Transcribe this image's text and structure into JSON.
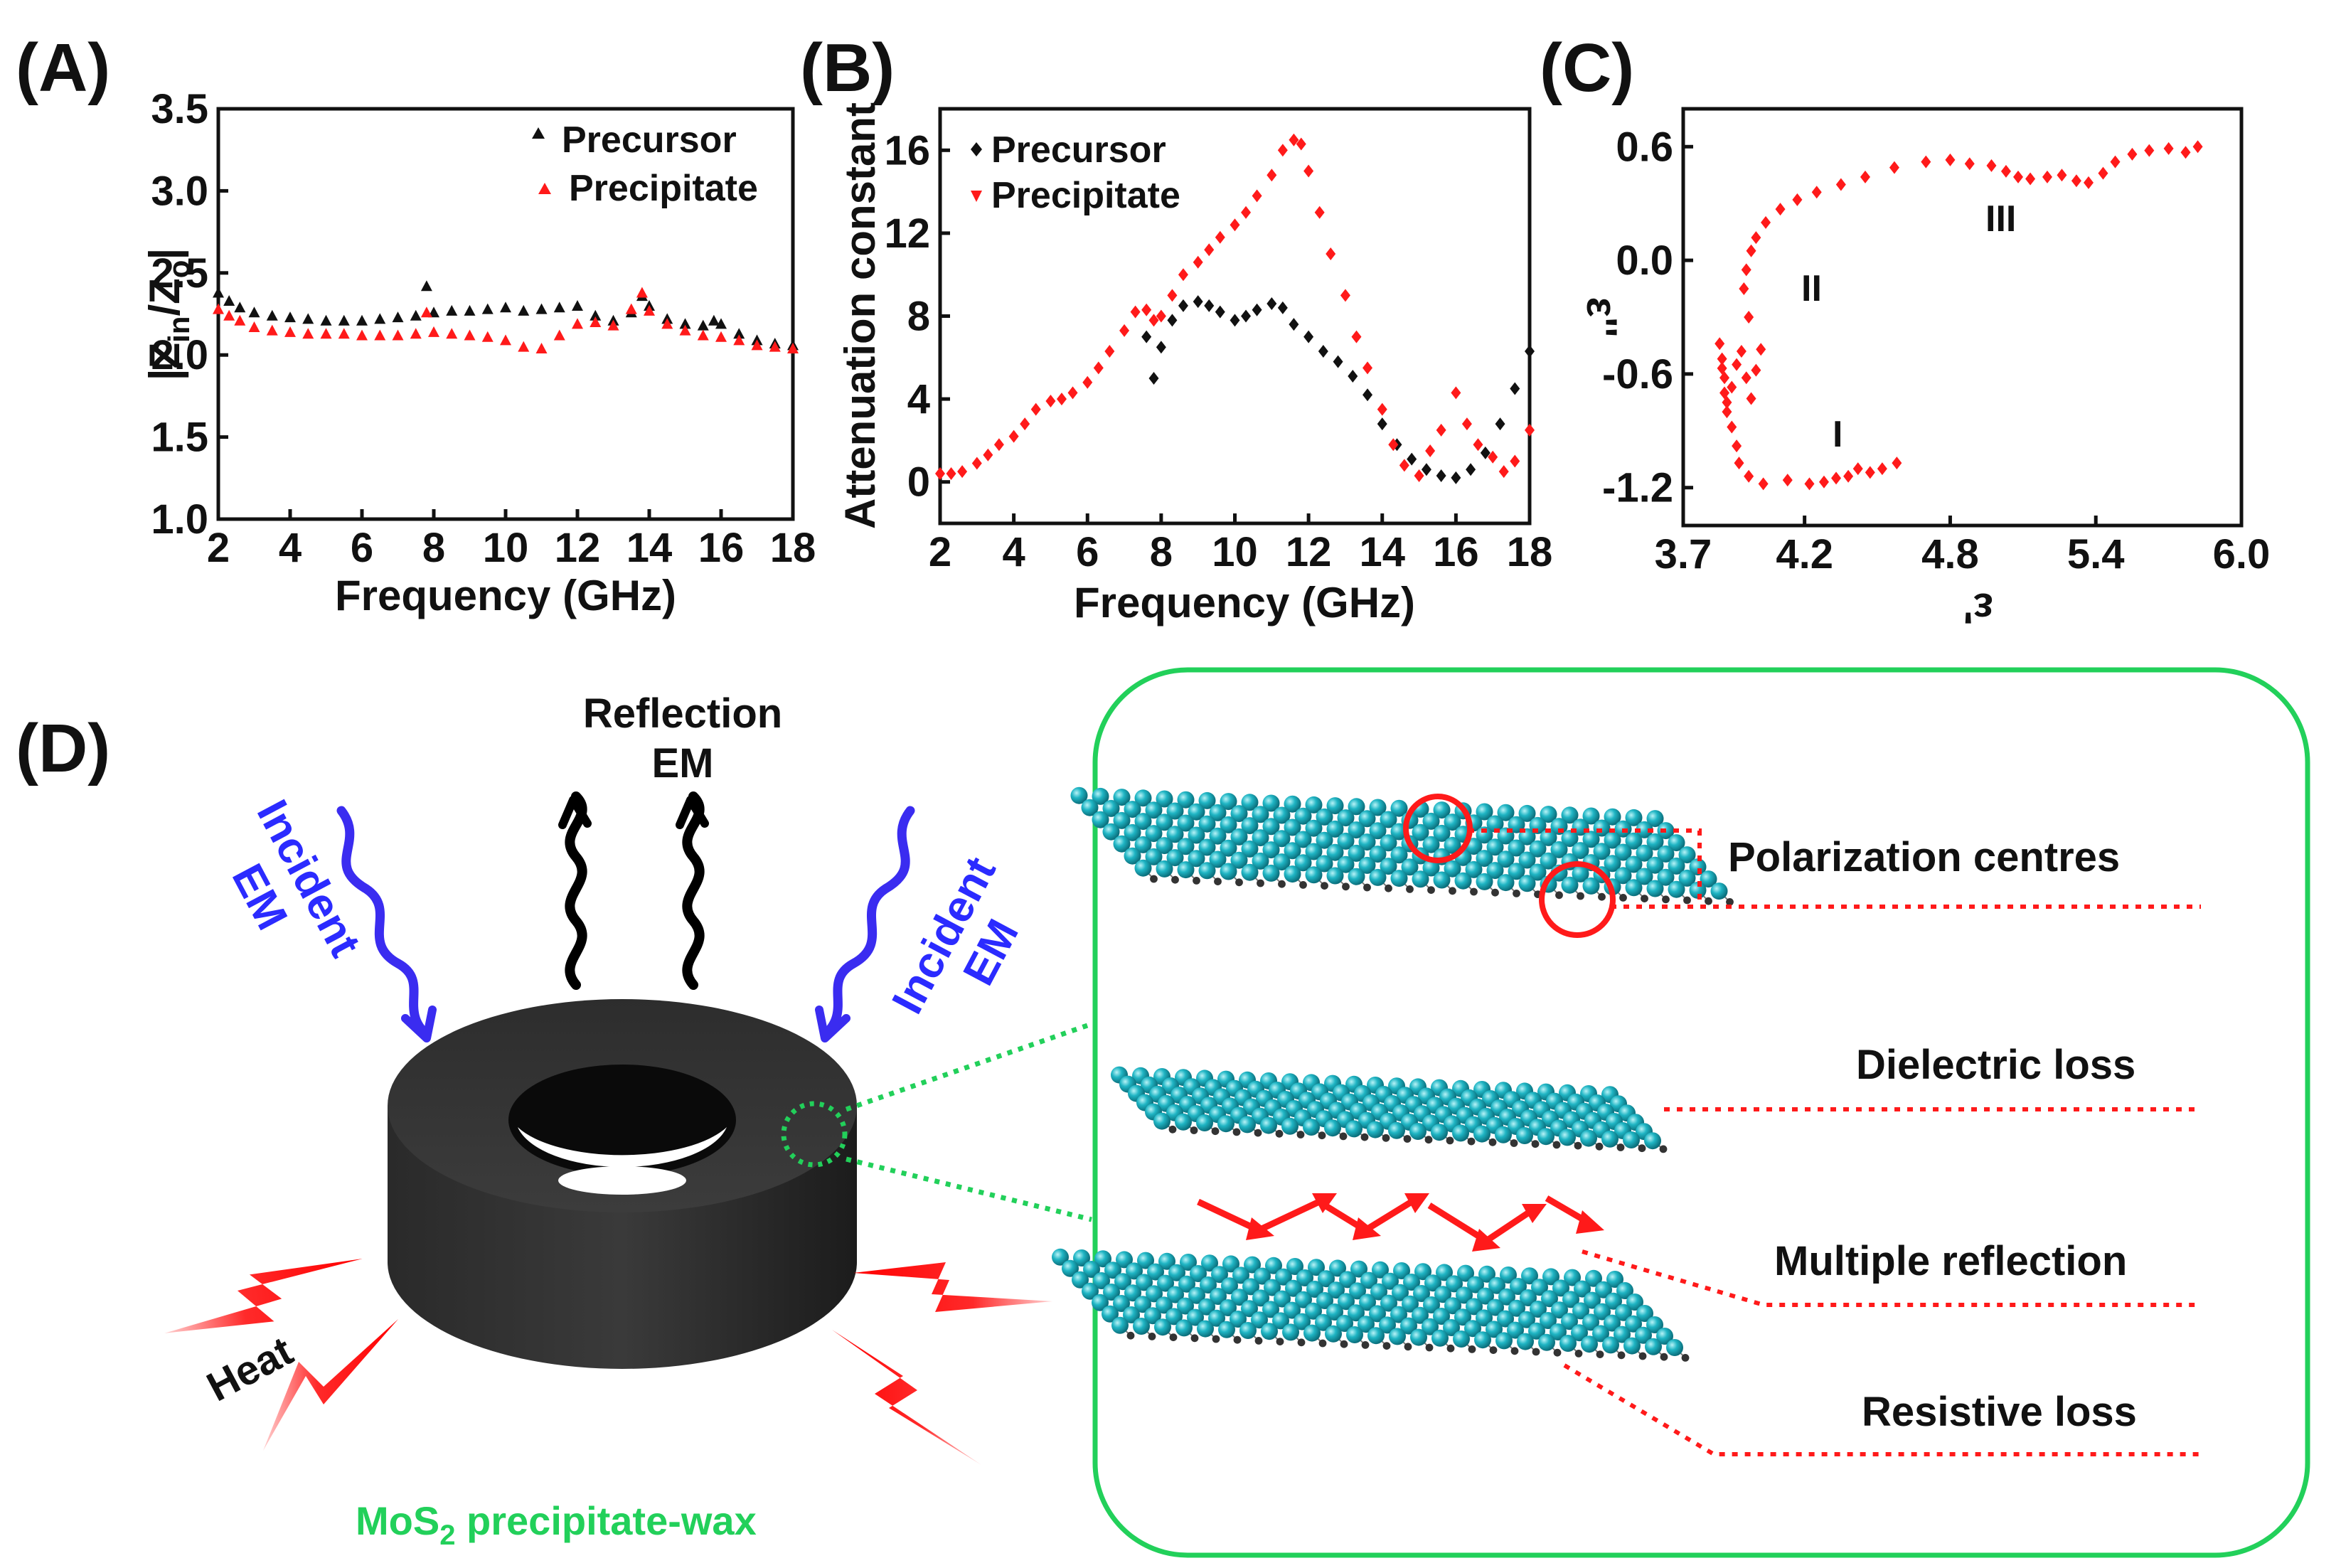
{
  "panels": {
    "a": {
      "label": "(A)"
    },
    "b": {
      "label": "(B)"
    },
    "c": {
      "label": "(C)"
    },
    "d": {
      "label": "(D)"
    }
  },
  "colors": {
    "black_series": "#111111",
    "red_series": "#ff1a1a",
    "sphere": "#1ab0c0",
    "green": "#22d05a",
    "blue": "#2b2bff"
  },
  "chart_data": [
    {
      "id": "A",
      "type": "scatter",
      "title": "",
      "xlabel": "Frequency (GHz)",
      "ylabel_main": "|Z",
      "ylabel_sub1": "in",
      "ylabel_mid": "/Z",
      "ylabel_sub2": "o",
      "ylabel_end": "|",
      "xlim": [
        2,
        18
      ],
      "ylim": [
        1.0,
        3.5
      ],
      "xticks": [
        "2",
        "4",
        "6",
        "8",
        "10",
        "12",
        "14",
        "16",
        "18"
      ],
      "yticks": [
        "1.0",
        "1.5",
        "2.0",
        "2.5",
        "3.0",
        "3.5"
      ],
      "legend": [
        "Precursor",
        "Precipitate"
      ],
      "series": [
        {
          "name": "Precursor",
          "marker": "triangle",
          "color": "#111111",
          "x": [
            2.0,
            2.3,
            2.6,
            3.0,
            3.5,
            4.0,
            4.5,
            5.0,
            5.5,
            6.0,
            6.5,
            7.0,
            7.5,
            7.8,
            8.0,
            8.5,
            9.0,
            9.5,
            10.0,
            10.5,
            11.0,
            11.5,
            12.0,
            12.5,
            13.0,
            13.5,
            13.8,
            14.0,
            14.5,
            15.0,
            15.5,
            15.8,
            16.0,
            16.5,
            17.0,
            17.5,
            18.0
          ],
          "y": [
            2.38,
            2.33,
            2.29,
            2.26,
            2.24,
            2.23,
            2.22,
            2.21,
            2.21,
            2.21,
            2.22,
            2.23,
            2.24,
            2.42,
            2.26,
            2.27,
            2.27,
            2.28,
            2.29,
            2.27,
            2.28,
            2.29,
            2.3,
            2.24,
            2.21,
            2.26,
            2.36,
            2.3,
            2.22,
            2.19,
            2.18,
            2.21,
            2.19,
            2.13,
            2.09,
            2.07,
            2.06
          ]
        },
        {
          "name": "Precipitate",
          "marker": "triangle",
          "color": "#ff1a1a",
          "x": [
            2.0,
            2.3,
            2.6,
            3.0,
            3.5,
            4.0,
            4.5,
            5.0,
            5.5,
            6.0,
            6.5,
            7.0,
            7.5,
            7.8,
            8.0,
            8.5,
            9.0,
            9.5,
            10.0,
            10.5,
            11.0,
            11.5,
            12.0,
            12.5,
            13.0,
            13.5,
            13.8,
            14.0,
            14.5,
            15.0,
            15.5,
            16.0,
            16.5,
            17.0,
            17.5,
            18.0
          ],
          "y": [
            2.28,
            2.24,
            2.21,
            2.17,
            2.15,
            2.14,
            2.13,
            2.13,
            2.13,
            2.12,
            2.12,
            2.12,
            2.13,
            2.26,
            2.14,
            2.13,
            2.12,
            2.11,
            2.09,
            2.05,
            2.04,
            2.12,
            2.19,
            2.2,
            2.18,
            2.28,
            2.38,
            2.27,
            2.19,
            2.15,
            2.12,
            2.11,
            2.09,
            2.06,
            2.05,
            2.04
          ]
        }
      ]
    },
    {
      "id": "B",
      "type": "scatter",
      "title": "",
      "xlabel": "Frequency (GHz)",
      "ylabel": "Attenuation constant",
      "xlim": [
        2,
        18
      ],
      "ylim": [
        -2,
        18
      ],
      "xticks": [
        "2",
        "4",
        "6",
        "8",
        "10",
        "12",
        "14",
        "16",
        "18"
      ],
      "yticks": [
        "0",
        "4",
        "8",
        "12",
        "16"
      ],
      "legend": [
        "Precursor",
        "Precipitate"
      ],
      "series": [
        {
          "name": "Precursor",
          "marker": "diamond",
          "color": "#111111",
          "x": [
            7.6,
            7.8,
            8.0,
            8.3,
            8.6,
            9.0,
            9.3,
            9.6,
            10.0,
            10.3,
            10.6,
            11.0,
            11.3,
            11.6,
            12.0,
            12.4,
            12.8,
            13.2,
            13.6,
            14.0,
            14.4,
            14.8,
            15.2,
            15.6,
            16.0,
            16.4,
            16.8,
            17.2,
            17.6,
            18.0
          ],
          "y": [
            7.0,
            5.0,
            6.5,
            7.8,
            8.5,
            8.7,
            8.5,
            8.2,
            7.8,
            8.0,
            8.3,
            8.6,
            8.4,
            7.6,
            7.0,
            6.3,
            5.8,
            5.1,
            4.2,
            2.8,
            1.8,
            1.1,
            0.6,
            0.3,
            0.2,
            0.6,
            1.4,
            2.8,
            4.5,
            6.3
          ]
        },
        {
          "name": "Precipitate",
          "marker": "diamond",
          "color": "#ff1a1a",
          "x": [
            2.0,
            2.3,
            2.6,
            3.0,
            3.3,
            3.6,
            4.0,
            4.3,
            4.6,
            5.0,
            5.3,
            5.6,
            6.0,
            6.3,
            6.6,
            7.0,
            7.3,
            7.6,
            7.8,
            8.0,
            8.3,
            8.6,
            9.0,
            9.3,
            9.6,
            10.0,
            10.3,
            10.6,
            11.0,
            11.3,
            11.6,
            11.8,
            12.0,
            12.3,
            12.6,
            13.0,
            13.3,
            13.6,
            14.0,
            14.3,
            14.6,
            15.0,
            15.3,
            15.6,
            16.0,
            16.3,
            16.6,
            17.0,
            17.3,
            17.6,
            18.0
          ],
          "y": [
            0.4,
            0.4,
            0.5,
            0.9,
            1.3,
            1.8,
            2.2,
            2.8,
            3.5,
            3.9,
            4.0,
            4.3,
            4.8,
            5.5,
            6.3,
            7.3,
            8.2,
            8.3,
            7.8,
            8.0,
            9.0,
            10.0,
            10.6,
            11.2,
            11.8,
            12.4,
            13.0,
            13.8,
            14.8,
            16.0,
            16.5,
            16.3,
            15.0,
            13.0,
            11.0,
            9.0,
            7.0,
            5.5,
            3.5,
            1.8,
            0.8,
            0.3,
            1.5,
            2.5,
            4.3,
            2.8,
            1.8,
            1.2,
            0.5,
            1.0,
            2.5
          ]
        }
      ]
    },
    {
      "id": "C",
      "type": "scatter",
      "title": "",
      "xlabel": "ε'",
      "ylabel": "ε''",
      "xlim": [
        3.7,
        6.0
      ],
      "ylim": [
        -1.4,
        0.8
      ],
      "xticks": [
        "3.7",
        "4.2",
        "4.8",
        "5.4",
        "6.0"
      ],
      "yticks": [
        "-1.2",
        "-0.6",
        "0.0",
        "0.6"
      ],
      "regions": [
        "I",
        "II",
        "III"
      ],
      "series": [
        {
          "name": "Cole-Cole",
          "marker": "diamond",
          "color": "#ff1a1a",
          "x": [
            4.58,
            4.52,
            4.47,
            4.42,
            4.38,
            4.33,
            4.28,
            4.22,
            4.13,
            4.03,
            3.97,
            3.93,
            3.92,
            3.9,
            3.88,
            3.87,
            3.86,
            3.85,
            3.86,
            3.87,
            3.88,
            3.9,
            3.92,
            3.94,
            3.96,
            3.98,
            4.0,
            4.02,
            3.97,
            3.95,
            3.96,
            3.98,
            4.0,
            4.04,
            4.1,
            4.17,
            4.25,
            4.35,
            4.45,
            4.57,
            4.7,
            4.8,
            4.88,
            4.97,
            5.03,
            5.08,
            5.13,
            5.2,
            5.26,
            5.32,
            5.37,
            5.43,
            5.48,
            5.55,
            5.62,
            5.7,
            5.77,
            5.82
          ],
          "y": [
            -1.07,
            -1.1,
            -1.12,
            -1.1,
            -1.14,
            -1.15,
            -1.17,
            -1.18,
            -1.16,
            -1.18,
            -1.14,
            -1.07,
            -0.98,
            -0.88,
            -0.75,
            -0.62,
            -0.52,
            -0.44,
            -0.57,
            -0.7,
            -0.8,
            -0.67,
            -0.55,
            -0.48,
            -0.62,
            -0.73,
            -0.58,
            -0.47,
            -0.3,
            -0.15,
            -0.05,
            0.05,
            0.12,
            0.2,
            0.27,
            0.32,
            0.36,
            0.4,
            0.44,
            0.49,
            0.52,
            0.53,
            0.51,
            0.5,
            0.47,
            0.44,
            0.43,
            0.44,
            0.45,
            0.42,
            0.41,
            0.46,
            0.52,
            0.56,
            0.58,
            0.59,
            0.57,
            0.6
          ]
        }
      ]
    }
  ],
  "diagram": {
    "reflection_line1": "Reflection",
    "reflection_line2": "EM",
    "incident_left_line1": "Incident",
    "incident_left_line2": "EM",
    "incident_right_line1": "Incident",
    "incident_right_line2": "EM",
    "heat": "Heat",
    "caption_pre": "MoS",
    "caption_sub": "2",
    "caption_post": " precipitate-wax",
    "callouts": [
      "Polarization centres",
      "Dielectric loss",
      "Multiple reflection",
      "Resistive loss"
    ]
  }
}
